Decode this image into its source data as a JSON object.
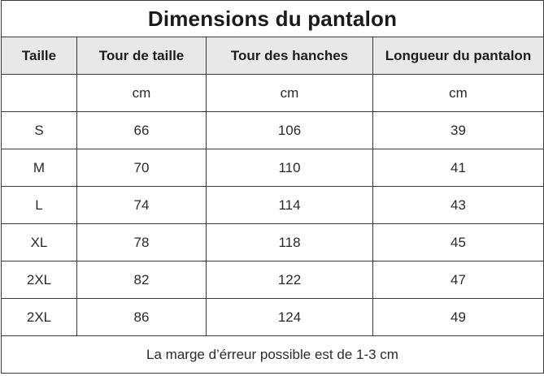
{
  "table": {
    "title": "Dimensions du pantalon",
    "headers": [
      "Taille",
      "Tour de taille",
      "Tour des hanches",
      "Longueur du pantalon"
    ],
    "units": [
      "",
      "cm",
      "cm",
      "cm"
    ],
    "rows": [
      [
        "S",
        "66",
        "106",
        "39"
      ],
      [
        "M",
        "70",
        "110",
        "41"
      ],
      [
        "L",
        "74",
        "114",
        "43"
      ],
      [
        "XL",
        "78",
        "118",
        "45"
      ],
      [
        "2XL",
        "82",
        "122",
        "47"
      ],
      [
        "2XL",
        "86",
        "124",
        "49"
      ]
    ],
    "footer": "La marge d’érreur possible est de 1-3 cm"
  },
  "colors": {
    "border": "#3a3a3a",
    "header_background": "#e8e8e8",
    "text": "#222222"
  }
}
